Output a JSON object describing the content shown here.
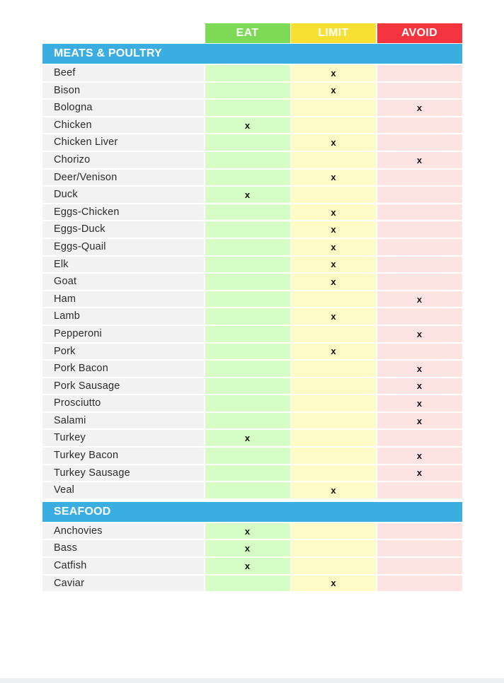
{
  "columns": {
    "eat": "EAT",
    "limit": "LIMIT",
    "avoid": "AVOID"
  },
  "mark": "x",
  "sections": [
    {
      "title": "MEATS & POULTRY",
      "items": [
        {
          "name": "Beef",
          "rating": "limit"
        },
        {
          "name": "Bison",
          "rating": "limit"
        },
        {
          "name": "Bologna",
          "rating": "avoid"
        },
        {
          "name": "Chicken",
          "rating": "eat"
        },
        {
          "name": "Chicken Liver",
          "rating": "limit"
        },
        {
          "name": "Chorizo",
          "rating": "avoid"
        },
        {
          "name": "Deer/Venison",
          "rating": "limit"
        },
        {
          "name": "Duck",
          "rating": "eat"
        },
        {
          "name": "Eggs-Chicken",
          "rating": "limit"
        },
        {
          "name": "Eggs-Duck",
          "rating": "limit"
        },
        {
          "name": "Eggs-Quail",
          "rating": "limit"
        },
        {
          "name": "Elk",
          "rating": "limit"
        },
        {
          "name": "Goat",
          "rating": "limit"
        },
        {
          "name": "Ham",
          "rating": "avoid"
        },
        {
          "name": "Lamb",
          "rating": "limit"
        },
        {
          "name": "Pepperoni",
          "rating": "avoid"
        },
        {
          "name": "Pork",
          "rating": "limit"
        },
        {
          "name": "Pork Bacon",
          "rating": "avoid"
        },
        {
          "name": "Pork Sausage",
          "rating": "avoid"
        },
        {
          "name": "Prosciutto",
          "rating": "avoid"
        },
        {
          "name": "Salami",
          "rating": "avoid"
        },
        {
          "name": "Turkey",
          "rating": "eat"
        },
        {
          "name": "Turkey Bacon",
          "rating": "avoid"
        },
        {
          "name": "Turkey Sausage",
          "rating": "avoid"
        },
        {
          "name": "Veal",
          "rating": "limit"
        }
      ]
    },
    {
      "title": "SEAFOOD",
      "items": [
        {
          "name": "Anchovies",
          "rating": "eat"
        },
        {
          "name": "Bass",
          "rating": "eat"
        },
        {
          "name": "Catfish",
          "rating": "eat"
        },
        {
          "name": "Caviar",
          "rating": "limit"
        }
      ]
    }
  ],
  "colors": {
    "eat_header": "#7ed957",
    "limit_header": "#f7e031",
    "avoid_header": "#f4353f",
    "section_header": "#3aaee0"
  }
}
